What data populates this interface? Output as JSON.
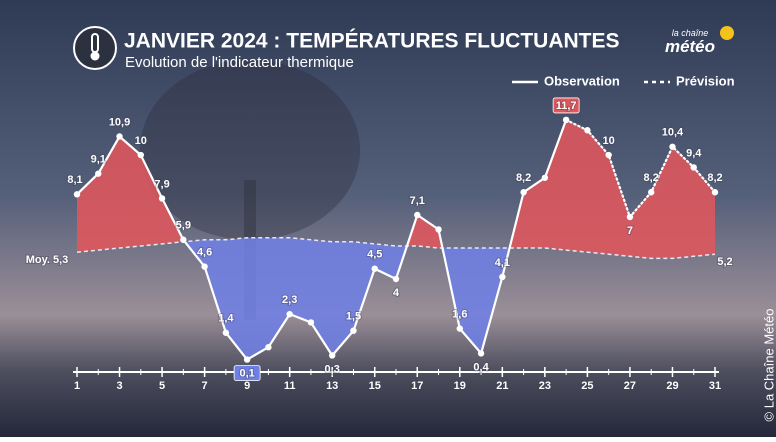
{
  "chart_data": {
    "type": "line",
    "title": "JANVIER 2024 : TEMPÉRATURES FLUCTUANTES",
    "subtitle": "Evolution de l'indicateur thermique",
    "x": [
      1,
      2,
      3,
      4,
      5,
      6,
      7,
      8,
      9,
      10,
      11,
      12,
      13,
      14,
      15,
      16,
      17,
      18,
      19,
      20,
      21,
      22,
      23,
      24,
      25,
      26,
      27,
      28,
      29,
      30,
      31
    ],
    "xlim": [
      1,
      31
    ],
    "xticks": [
      1,
      3,
      5,
      7,
      9,
      11,
      13,
      15,
      17,
      19,
      21,
      23,
      25,
      27,
      29,
      31
    ],
    "ylim": [
      -0.5,
      14.6
    ],
    "series": [
      {
        "name": "Observation",
        "color": "#ffffff",
        "style": "solid",
        "values": [
          8.1,
          9.1,
          10.9,
          10,
          7.9,
          5.9,
          4.6,
          1.4,
          0.1,
          0.7,
          2.3,
          1.9,
          0.3,
          1.5,
          4.5,
          4,
          7.1,
          6.4,
          1.6,
          0.4,
          4.1,
          8.2,
          8.9,
          11.7,
          null,
          null,
          null,
          null,
          null,
          null,
          null
        ],
        "value_labels": [
          "8,1",
          "9,1",
          "10,9",
          "10",
          "7,9",
          "5,9",
          "4,6",
          "1,4",
          "0,1",
          null,
          "2,3",
          null,
          "0,3",
          "1,5",
          "4,5",
          "4",
          "7,1",
          null,
          "1,6",
          "0,4",
          "4,1",
          "8,2",
          null,
          "11,7",
          null,
          null,
          null,
          null,
          null,
          null,
          null
        ]
      },
      {
        "name": "Prévision",
        "color": "#ffffff",
        "style": "dotted",
        "values": [
          null,
          null,
          null,
          null,
          null,
          null,
          null,
          null,
          null,
          null,
          null,
          null,
          null,
          null,
          null,
          null,
          null,
          null,
          null,
          null,
          null,
          null,
          null,
          11.7,
          11.2,
          10,
          7,
          8.2,
          10.4,
          9.4,
          8.2
        ],
        "value_labels": [
          null,
          null,
          null,
          null,
          null,
          null,
          null,
          null,
          null,
          null,
          null,
          null,
          null,
          null,
          null,
          null,
          null,
          null,
          null,
          null,
          null,
          null,
          null,
          null,
          null,
          "10",
          "7",
          "8,2",
          "10,4",
          "9,4",
          "8,2"
        ]
      }
    ],
    "normal": {
      "values": [
        5.3,
        5.4,
        5.5,
        5.6,
        5.7,
        5.8,
        5.9,
        5.9,
        6,
        6,
        6,
        5.9,
        5.8,
        5.8,
        5.7,
        5.6,
        5.6,
        5.5,
        5.5,
        5.5,
        5.5,
        5.5,
        5.5,
        5.4,
        5.3,
        5.2,
        5.1,
        5,
        5,
        5.1,
        5.2
      ],
      "value_labels": [
        "Moy. 5,3",
        null,
        null,
        null,
        null,
        null,
        null,
        null,
        null,
        null,
        null,
        null,
        null,
        null,
        null,
        null,
        null,
        null,
        null,
        null,
        null,
        null,
        null,
        null,
        null,
        null,
        null,
        null,
        null,
        null,
        "5,2"
      ]
    },
    "above_color": "#e0575c",
    "below_color": "#6f80e4",
    "legend": "top-right"
  },
  "logo": {
    "line1": "la chaîne",
    "line2": "météo"
  },
  "credit": "© La Chaîne Météo"
}
